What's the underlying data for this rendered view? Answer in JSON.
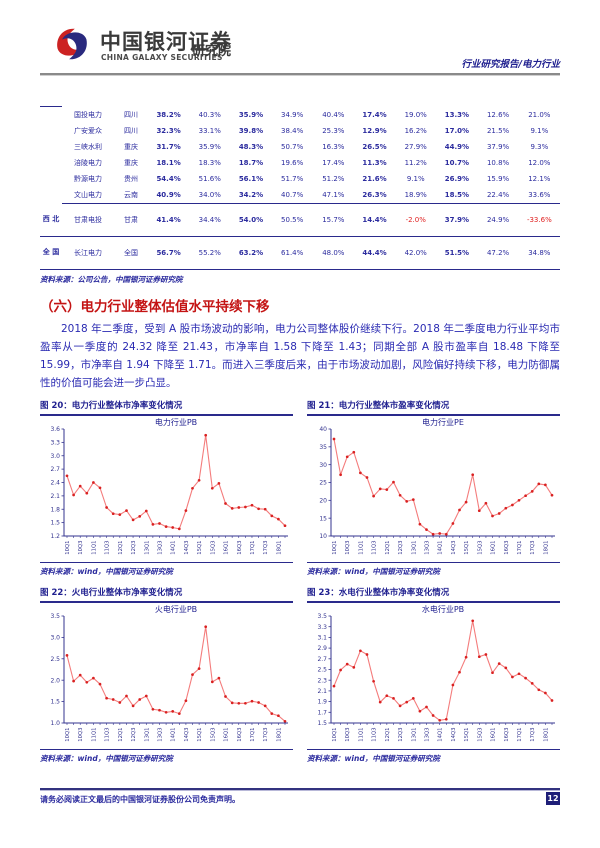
{
  "header": {
    "brand_cn": "中国银河证券",
    "brand_en": "CHINA GALAXY SECURITIES",
    "brand_suffix": "研究院",
    "report_type": "行业研究报告/电力行业"
  },
  "colors": {
    "navy_accent": "#1f1f8f",
    "text_navy": "#2b2b9e",
    "title_red": "#c41414",
    "negative_red": "#e02020",
    "chart_line": "#f47c7c",
    "chart_marker": "#d92121",
    "axis": "#33338f"
  },
  "table": {
    "bold_value_columns": [
      0,
      2,
      5,
      7
    ],
    "groups": [
      {
        "label": "",
        "rows": [
          {
            "company": "国投电力",
            "province": "四川",
            "values": [
              "38.2%",
              "40.3%",
              "35.9%",
              "34.9%",
              "40.4%",
              "17.4%",
              "19.0%",
              "13.3%",
              "12.6%",
              "21.0%"
            ]
          },
          {
            "company": "广安爱众",
            "province": "四川",
            "values": [
              "32.3%",
              "33.1%",
              "39.8%",
              "38.4%",
              "25.3%",
              "12.9%",
              "16.2%",
              "17.0%",
              "21.5%",
              "9.1%"
            ]
          },
          {
            "company": "三峡水利",
            "province": "重庆",
            "values": [
              "31.7%",
              "35.9%",
              "48.3%",
              "50.7%",
              "16.3%",
              "26.5%",
              "27.9%",
              "44.9%",
              "37.9%",
              "9.3%"
            ]
          },
          {
            "company": "涪陵电力",
            "province": "重庆",
            "values": [
              "18.1%",
              "18.3%",
              "18.7%",
              "19.6%",
              "17.4%",
              "11.3%",
              "11.2%",
              "10.7%",
              "10.8%",
              "12.0%"
            ]
          },
          {
            "company": "黔源电力",
            "province": "贵州",
            "values": [
              "54.4%",
              "51.6%",
              "56.1%",
              "51.7%",
              "51.2%",
              "21.6%",
              "9.1%",
              "26.9%",
              "15.9%",
              "12.1%"
            ]
          },
          {
            "company": "文山电力",
            "province": "云南",
            "values": [
              "40.9%",
              "34.0%",
              "34.2%",
              "40.7%",
              "47.1%",
              "26.3%",
              "18.9%",
              "18.5%",
              "22.4%",
              "33.6%"
            ]
          }
        ]
      },
      {
        "label": "西北",
        "rows": [
          {
            "company": "甘肃电投",
            "province": "甘肃",
            "values": [
              "41.4%",
              "34.4%",
              "54.0%",
              "50.5%",
              "15.7%",
              "14.4%",
              "-2.0%",
              "37.9%",
              "24.9%",
              "-33.6%"
            ]
          }
        ]
      },
      {
        "label": "全国",
        "rows": [
          {
            "company": "长江电力",
            "province": "全国",
            "values": [
              "56.7%",
              "55.2%",
              "63.2%",
              "61.4%",
              "48.0%",
              "44.4%",
              "42.0%",
              "51.5%",
              "47.2%",
              "34.8%"
            ]
          }
        ]
      }
    ],
    "source": "资料来源：公司公告，中国银河证券研究院"
  },
  "section": {
    "title": "（六）电力行业整体估值水平持续下移",
    "paragraph": "2018 年二季度，受到 A 股市场波动的影响，电力公司整体股价继续下行。2018 年二季度电力行业平均市盈率从一季度的 24.32 降至 21.43，市净率自 1.58 下降至 1.43；同期全部 A 股市盈率自 18.48 下降至 15.99，市净率自 1.94 下降至 1.71。而进入三季度后来，由于市场波动加剧，风险偏好持续下移，电力防御属性的价值可能会进一步凸显。"
  },
  "figures": [
    {
      "label": "图 20：电力行业整体市净率变化情况",
      "source": "资料来源：wind，中国银河证券研究院"
    },
    {
      "label": "图 21：电力行业整体市盈率变化情况",
      "source": "资料来源：wind，中国银河证券研究院"
    },
    {
      "label": "图 22：火电行业整体市净率变化情况",
      "source": "资料来源：wind，中国银河证券研究院"
    },
    {
      "label": "图 23：水电行业整体市净率变化情况",
      "source": "资料来源：wind，中国银河证券研究院"
    }
  ],
  "chart_data": [
    {
      "type": "line",
      "title": "电力行业PB",
      "x": [
        "10Q1",
        "10Q2",
        "10Q3",
        "10Q4",
        "11Q1",
        "11Q2",
        "11Q3",
        "11Q4",
        "12Q1",
        "12Q2",
        "12Q3",
        "12Q4",
        "13Q1",
        "13Q2",
        "13Q3",
        "13Q4",
        "14Q1",
        "14Q2",
        "14Q3",
        "14Q4",
        "15Q1",
        "15Q2",
        "15Q3",
        "15Q4",
        "16Q1",
        "16Q2",
        "16Q3",
        "16Q4",
        "17Q1",
        "17Q2",
        "17Q3",
        "17Q4",
        "18Q1",
        "18Q2"
      ],
      "values": [
        2.55,
        2.12,
        2.32,
        2.16,
        2.4,
        2.28,
        1.84,
        1.7,
        1.68,
        1.77,
        1.56,
        1.64,
        1.76,
        1.46,
        1.48,
        1.41,
        1.39,
        1.36,
        1.77,
        2.27,
        2.45,
        3.46,
        2.27,
        2.38,
        1.93,
        1.82,
        1.84,
        1.85,
        1.89,
        1.81,
        1.8,
        1.65,
        1.58,
        1.43
      ],
      "ylim": [
        1.2,
        3.6
      ],
      "yticks": [
        "1.2",
        "1.5",
        "1.8",
        "2.1",
        "2.4",
        "2.7",
        "3.0",
        "3.3",
        "3.6"
      ],
      "xtick_every": 2,
      "grid": false,
      "legend": "none"
    },
    {
      "type": "line",
      "title": "电力行业PE",
      "x": [
        "10Q1",
        "10Q2",
        "10Q3",
        "10Q4",
        "11Q1",
        "11Q2",
        "11Q3",
        "11Q4",
        "12Q1",
        "12Q2",
        "12Q3",
        "12Q4",
        "13Q1",
        "13Q2",
        "13Q3",
        "13Q4",
        "14Q1",
        "14Q2",
        "14Q3",
        "14Q4",
        "15Q1",
        "15Q2",
        "15Q3",
        "15Q4",
        "16Q1",
        "16Q2",
        "16Q3",
        "16Q4",
        "17Q1",
        "17Q2",
        "17Q3",
        "17Q4",
        "18Q1",
        "18Q2"
      ],
      "values": [
        37.2,
        27.2,
        32.2,
        33.5,
        27.7,
        26.4,
        21.2,
        23.2,
        23.0,
        25.1,
        21.4,
        19.7,
        20.2,
        13.3,
        11.8,
        10.5,
        10.7,
        10.5,
        13.5,
        17.3,
        19.5,
        27.2,
        17.1,
        19.2,
        15.6,
        16.3,
        17.8,
        18.7,
        20.0,
        21.3,
        22.5,
        24.6,
        24.32,
        21.43
      ],
      "ylim": [
        10,
        40
      ],
      "yticks": [
        "10",
        "15",
        "20",
        "25",
        "30",
        "35",
        "40"
      ],
      "xtick_every": 2,
      "grid": false,
      "legend": "none"
    },
    {
      "type": "line",
      "title": "火电行业PB",
      "x": [
        "10Q1",
        "10Q2",
        "10Q3",
        "10Q4",
        "11Q1",
        "11Q2",
        "11Q3",
        "11Q4",
        "12Q1",
        "12Q2",
        "12Q3",
        "12Q4",
        "13Q1",
        "13Q2",
        "13Q3",
        "13Q4",
        "14Q1",
        "14Q2",
        "14Q3",
        "14Q4",
        "15Q1",
        "15Q2",
        "15Q3",
        "15Q4",
        "16Q1",
        "16Q2",
        "16Q3",
        "16Q4",
        "17Q1",
        "17Q2",
        "17Q3",
        "17Q4",
        "18Q1",
        "18Q2"
      ],
      "values": [
        2.58,
        1.98,
        2.12,
        1.95,
        2.05,
        1.91,
        1.58,
        1.55,
        1.48,
        1.63,
        1.4,
        1.55,
        1.63,
        1.32,
        1.3,
        1.25,
        1.27,
        1.22,
        1.52,
        2.13,
        2.27,
        3.25,
        1.96,
        2.05,
        1.62,
        1.47,
        1.46,
        1.46,
        1.51,
        1.48,
        1.4,
        1.22,
        1.17,
        1.04
      ],
      "ylim": [
        1.0,
        3.5
      ],
      "yticks": [
        "1.0",
        "1.5",
        "2.0",
        "2.5",
        "3.0",
        "3.5"
      ],
      "xtick_every": 2,
      "grid": false,
      "legend": "none"
    },
    {
      "type": "line",
      "title": "水电行业PB",
      "x": [
        "10Q1",
        "10Q2",
        "10Q3",
        "10Q4",
        "11Q1",
        "11Q2",
        "11Q3",
        "11Q4",
        "12Q1",
        "12Q2",
        "12Q3",
        "12Q4",
        "13Q1",
        "13Q2",
        "13Q3",
        "13Q4",
        "14Q1",
        "14Q2",
        "14Q3",
        "14Q4",
        "15Q1",
        "15Q2",
        "15Q3",
        "15Q4",
        "16Q1",
        "16Q2",
        "16Q3",
        "16Q4",
        "17Q1",
        "17Q2",
        "17Q3",
        "17Q4",
        "18Q1",
        "18Q2"
      ],
      "values": [
        2.19,
        2.49,
        2.6,
        2.54,
        2.85,
        2.78,
        2.28,
        1.89,
        2.01,
        1.96,
        1.82,
        1.89,
        1.96,
        1.72,
        1.8,
        1.64,
        1.55,
        1.57,
        2.21,
        2.45,
        2.73,
        3.41,
        2.74,
        2.78,
        2.44,
        2.61,
        2.53,
        2.36,
        2.42,
        2.34,
        2.24,
        2.12,
        2.06,
        1.92
      ],
      "ylim": [
        1.5,
        3.5
      ],
      "yticks": [
        "1.5",
        "1.7",
        "1.9",
        "2.1",
        "2.3",
        "2.5",
        "2.7",
        "2.9",
        "3.1",
        "3.3",
        "3.5"
      ],
      "xtick_every": 2,
      "grid": false,
      "legend": "none"
    }
  ],
  "footer": {
    "disclaimer": "请务必阅读正文最后的中国银河证券股份公司免责声明。",
    "page": "12"
  }
}
